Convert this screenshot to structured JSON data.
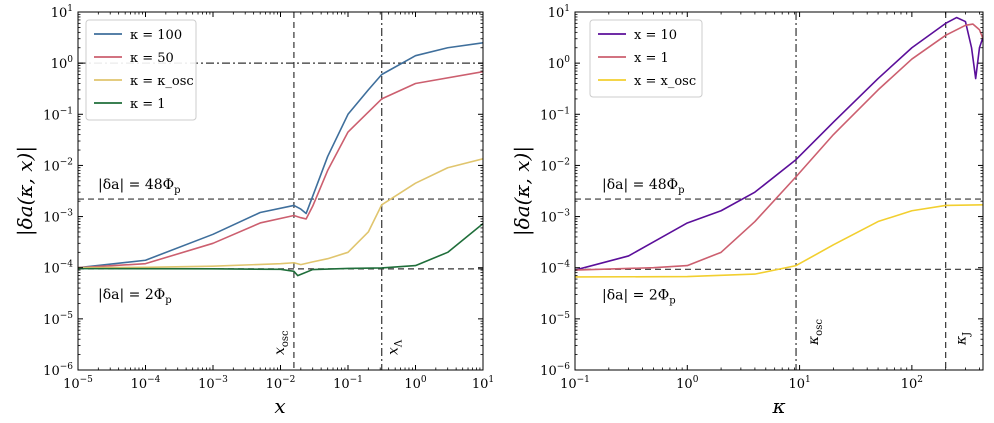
{
  "chart_data": [
    {
      "type": "line",
      "xscale": "log",
      "yscale": "log",
      "xlim": [
        1e-05,
        10
      ],
      "ylim": [
        1e-06,
        10
      ],
      "xlabel": "x",
      "ylabel": "|δa(κ, x)|",
      "x_ticks": [
        {
          "v": 1e-05,
          "m": "10",
          "e": "−5"
        },
        {
          "v": 0.0001,
          "m": "10",
          "e": "−4"
        },
        {
          "v": 0.001,
          "m": "10",
          "e": "−3"
        },
        {
          "v": 0.01,
          "m": "10",
          "e": "−2"
        },
        {
          "v": 0.1,
          "m": "10",
          "e": "−1"
        },
        {
          "v": 1,
          "m": "10",
          "e": "0"
        },
        {
          "v": 10,
          "m": "10",
          "e": "1"
        }
      ],
      "y_ticks": [
        {
          "v": 1e-06,
          "m": "10",
          "e": "−6"
        },
        {
          "v": 1e-05,
          "m": "10",
          "e": "−5"
        },
        {
          "v": 0.0001,
          "m": "10",
          "e": "−4"
        },
        {
          "v": 0.001,
          "m": "10",
          "e": "−3"
        },
        {
          "v": 0.01,
          "m": "10",
          "e": "−2"
        },
        {
          "v": 0.1,
          "m": "10",
          "e": "−1"
        },
        {
          "v": 1,
          "m": "10",
          "e": "0"
        },
        {
          "v": 10,
          "m": "10",
          "e": "1"
        }
      ],
      "legend_position": "top-left",
      "series": [
        {
          "name": "κ = 100",
          "color": "#3f6f9c",
          "points": [
            [
              1e-05,
              0.0001
            ],
            [
              0.0001,
              0.00014
            ],
            [
              0.001,
              0.00045
            ],
            [
              0.005,
              0.0012
            ],
            [
              0.0158,
              0.00165
            ],
            [
              0.02,
              0.0014
            ],
            [
              0.024,
              0.00115
            ],
            [
              0.03,
              0.0025
            ],
            [
              0.05,
              0.015
            ],
            [
              0.1,
              0.1
            ],
            [
              0.2,
              0.3
            ],
            [
              0.316,
              0.6
            ],
            [
              1,
              1.4
            ],
            [
              3,
              2.0
            ],
            [
              10,
              2.5
            ]
          ]
        },
        {
          "name": "κ = 50",
          "color": "#cc5f6f",
          "points": [
            [
              1e-05,
              0.0001
            ],
            [
              0.0001,
              0.00012
            ],
            [
              0.001,
              0.0003
            ],
            [
              0.005,
              0.00075
            ],
            [
              0.0158,
              0.00105
            ],
            [
              0.02,
              0.00095
            ],
            [
              0.024,
              0.0009
            ],
            [
              0.03,
              0.0016
            ],
            [
              0.05,
              0.008
            ],
            [
              0.1,
              0.045
            ],
            [
              0.316,
              0.2
            ],
            [
              1,
              0.4
            ],
            [
              10,
              0.68
            ]
          ]
        },
        {
          "name": "κ = κ_osc",
          "color": "#e0c56e",
          "points": [
            [
              1e-05,
              0.0001
            ],
            [
              0.0001,
              0.000102
            ],
            [
              0.001,
              0.000107
            ],
            [
              0.01,
              0.00012
            ],
            [
              0.0158,
              0.000125
            ],
            [
              0.02,
              0.000115
            ],
            [
              0.03,
              0.00013
            ],
            [
              0.05,
              0.00015
            ],
            [
              0.1,
              0.0002
            ],
            [
              0.2,
              0.0005
            ],
            [
              0.316,
              0.0017
            ],
            [
              0.5,
              0.0025
            ],
            [
              1,
              0.0045
            ],
            [
              3,
              0.009
            ],
            [
              10,
              0.0135
            ]
          ]
        },
        {
          "name": "κ = 1",
          "color": "#1f6e3a",
          "points": [
            [
              1e-05,
              9.6e-05
            ],
            [
              0.001,
              9.5e-05
            ],
            [
              0.01,
              9.3e-05
            ],
            [
              0.0158,
              8.5e-05
            ],
            [
              0.018,
              7e-05
            ],
            [
              0.022,
              7.8e-05
            ],
            [
              0.03,
              9.2e-05
            ],
            [
              0.1,
              9.7e-05
            ],
            [
              0.316,
              9.9e-05
            ],
            [
              1,
              0.00011
            ],
            [
              3,
              0.0002
            ],
            [
              10,
              0.00073
            ]
          ]
        }
      ],
      "hlines": [
        {
          "y": 1,
          "style": "dashdot"
        },
        {
          "y": 0.0022,
          "style": "dashed",
          "label_main": "|δa| = 48Φ",
          "label_sub": "p"
        },
        {
          "y": 9.5e-05,
          "style": "dashed",
          "label_main": "|δa| = 2Φ",
          "label_sub": "p"
        }
      ],
      "vlines": [
        {
          "x": 0.0158,
          "style": "dashed",
          "label_main": "x",
          "label_sub": "osc"
        },
        {
          "x": 0.316,
          "style": "dashdot",
          "label_main": "x",
          "label_sub": "Λ"
        }
      ]
    },
    {
      "type": "line",
      "xscale": "log",
      "yscale": "log",
      "xlim": [
        0.1,
        430
      ],
      "ylim": [
        1e-06,
        10
      ],
      "xlabel": "κ",
      "ylabel": "|δa(κ, x)|",
      "x_ticks": [
        {
          "v": 0.1,
          "m": "10",
          "e": "−1"
        },
        {
          "v": 1,
          "m": "10",
          "e": "0"
        },
        {
          "v": 10,
          "m": "10",
          "e": "1"
        },
        {
          "v": 100,
          "m": "10",
          "e": "2"
        }
      ],
      "y_ticks": [
        {
          "v": 1e-06,
          "m": "10",
          "e": "−6"
        },
        {
          "v": 1e-05,
          "m": "10",
          "e": "−5"
        },
        {
          "v": 0.0001,
          "m": "10",
          "e": "−4"
        },
        {
          "v": 0.001,
          "m": "10",
          "e": "−3"
        },
        {
          "v": 0.01,
          "m": "10",
          "e": "−2"
        },
        {
          "v": 0.1,
          "m": "10",
          "e": "−1"
        },
        {
          "v": 1,
          "m": "10",
          "e": "0"
        },
        {
          "v": 10,
          "m": "10",
          "e": "1"
        }
      ],
      "legend_position": "top-left",
      "series": [
        {
          "name": "x = 10",
          "color": "#5b0f9a",
          "points": [
            [
              0.1,
              9e-05
            ],
            [
              0.3,
              0.00017
            ],
            [
              0.6,
              0.0004
            ],
            [
              1,
              0.00075
            ],
            [
              2,
              0.0013
            ],
            [
              4,
              0.003
            ],
            [
              9.3,
              0.013
            ],
            [
              20,
              0.07
            ],
            [
              50,
              0.5
            ],
            [
              100,
              2.0
            ],
            [
              200,
              6.0
            ],
            [
              250,
              7.8
            ],
            [
              300,
              6.5
            ],
            [
              340,
              2.0
            ],
            [
              370,
              0.5
            ],
            [
              400,
              2.0
            ],
            [
              430,
              3.2
            ]
          ]
        },
        {
          "name": "x = 1",
          "color": "#cc5f6f",
          "points": [
            [
              0.1,
              9e-05
            ],
            [
              0.5,
              0.0001
            ],
            [
              1,
              0.00011
            ],
            [
              2,
              0.0002
            ],
            [
              4,
              0.0008
            ],
            [
              9.3,
              0.006
            ],
            [
              20,
              0.04
            ],
            [
              50,
              0.3
            ],
            [
              100,
              1.2
            ],
            [
              200,
              3.5
            ],
            [
              300,
              5.5
            ],
            [
              350,
              5.8
            ],
            [
              400,
              4.5
            ],
            [
              430,
              3.0
            ]
          ]
        },
        {
          "name": "x = x_osc",
          "color": "#f2cf2f",
          "points": [
            [
              0.1,
              6.6e-05
            ],
            [
              1,
              6.7e-05
            ],
            [
              4,
              7.5e-05
            ],
            [
              9.3,
              0.00011
            ],
            [
              20,
              0.00028
            ],
            [
              50,
              0.0008
            ],
            [
              100,
              0.0013
            ],
            [
              200,
              0.00165
            ],
            [
              430,
              0.0017
            ]
          ]
        }
      ],
      "hlines": [
        {
          "y": 0.0022,
          "style": "dashed",
          "label_main": "|δa| = 48Φ",
          "label_sub": "p"
        },
        {
          "y": 9.3e-05,
          "style": "dashed",
          "label_main": "|δa| = 2Φ",
          "label_sub": "p"
        }
      ],
      "vlines": [
        {
          "x": 9.3,
          "style": "dashdot",
          "label_main": "κ",
          "label_sub": "osc"
        },
        {
          "x": 200,
          "style": "dashed",
          "label_main": "κ",
          "label_sub": "J"
        }
      ]
    }
  ]
}
